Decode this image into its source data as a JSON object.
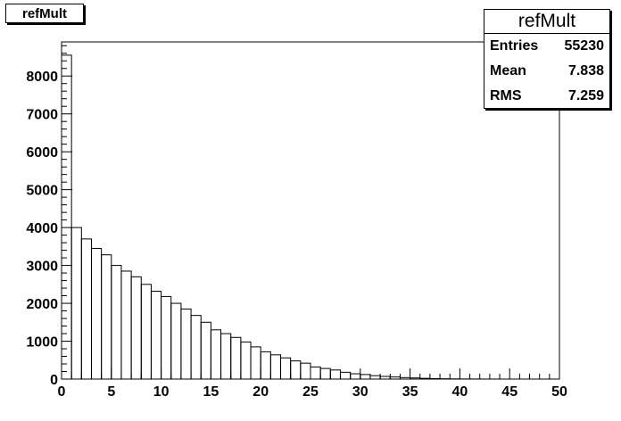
{
  "title": "refMult",
  "stats": {
    "title": "refMult",
    "rows": [
      {
        "label": "Entries",
        "value": "55230"
      },
      {
        "label": "Mean",
        "value": "7.838"
      },
      {
        "label": "RMS",
        "value": "7.259"
      }
    ]
  },
  "chart_data": {
    "type": "bar",
    "title": "refMult",
    "xlabel": "",
    "ylabel": "",
    "xlim": [
      0,
      50
    ],
    "ylim": [
      0,
      8900
    ],
    "bin_width": 1,
    "x_ticks": [
      "0",
      "5",
      "10",
      "15",
      "20",
      "25",
      "30",
      "35",
      "40",
      "45",
      "50"
    ],
    "y_ticks": [
      "0",
      "1000",
      "2000",
      "3000",
      "4000",
      "5000",
      "6000",
      "7000",
      "8000"
    ],
    "values": [
      8550,
      4000,
      3700,
      3450,
      3280,
      3000,
      2850,
      2700,
      2500,
      2320,
      2180,
      2000,
      1850,
      1680,
      1500,
      1300,
      1200,
      1100,
      980,
      850,
      720,
      640,
      560,
      480,
      420,
      320,
      280,
      240,
      180,
      140,
      120,
      90,
      70,
      55,
      40,
      30,
      20,
      12,
      8,
      5,
      3,
      2,
      1,
      1,
      0,
      0,
      0,
      0,
      0,
      0
    ],
    "grid": false,
    "legend": "none"
  }
}
